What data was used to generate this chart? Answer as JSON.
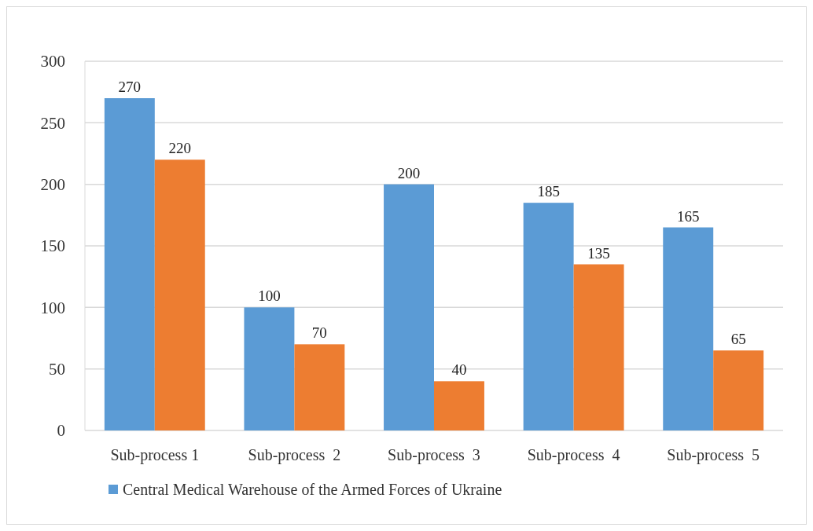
{
  "chart_data": {
    "type": "bar",
    "categories": [
      "Sub-process 1",
      "Sub-process  2",
      "Sub-process  3",
      "Sub-process  4",
      "Sub-process  5"
    ],
    "series": [
      {
        "name": "Central Medical Warehouse of the Armed Forces of Ukraine",
        "color": "#5b9bd5",
        "values": [
          270,
          100,
          200,
          185,
          165
        ]
      },
      {
        "color": "#ed7d31",
        "values": [
          220,
          70,
          40,
          135,
          65
        ]
      }
    ],
    "ylim": [
      0,
      300
    ],
    "yticks": [
      0,
      50,
      100,
      150,
      200,
      250,
      300
    ],
    "grid": "y",
    "data_labels": true,
    "legend": "bottom"
  }
}
